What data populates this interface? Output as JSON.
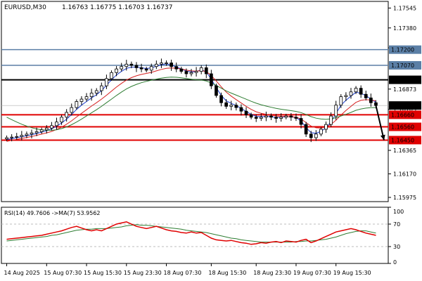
{
  "header": {
    "symbol_tf": "EURUSD,M30",
    "ohlc": "1.16763 1.16775 1.16703 1.16737"
  },
  "chart_data": {
    "type": "candlestick",
    "price_axis": {
      "range": [
        1.1594,
        1.176
      ],
      "ticks": [
        "1.17545",
        "1.17380",
        "1.17215",
        "1.16873",
        "1.16705",
        "1.16365",
        "1.16170",
        "1.15975"
      ]
    },
    "levels": [
      {
        "value": 1.172,
        "label": "1.17200",
        "color": "#5b7fa6",
        "width": 1.5
      },
      {
        "value": 1.1707,
        "label": "1.17070",
        "color": "#5b7fa6",
        "width": 1.5
      },
      {
        "value": 1.1695,
        "label": "1.16950",
        "color": "#000000",
        "width": 2
      },
      {
        "value": 1.1666,
        "label": "1.16660",
        "color": "#e00000",
        "width": 2
      },
      {
        "value": 1.1656,
        "label": "1.16560",
        "color": "#e00000",
        "width": 2
      },
      {
        "value": 1.1645,
        "label": "1.16450",
        "color": "#e00000",
        "width": 2
      }
    ],
    "current_price": {
      "value": 1.16737,
      "label": "1.16737"
    },
    "series": [
      {
        "name": "price",
        "color": "#000000",
        "values": [
          1.1647,
          1.16475,
          1.1648,
          1.1649,
          1.165,
          1.1651,
          1.1652,
          1.16535,
          1.1655,
          1.1657,
          1.166,
          1.1664,
          1.1668,
          1.1672,
          1.1677,
          1.1679,
          1.1681,
          1.1684,
          1.1686,
          1.169,
          1.1696,
          1.1701,
          1.1704,
          1.1706,
          1.1708,
          1.1707,
          1.1705,
          1.1704,
          1.1703,
          1.1706,
          1.1708,
          1.1709,
          1.1709,
          1.1706,
          1.1704,
          1.1702,
          1.17,
          1.1701,
          1.1702,
          1.1705,
          1.17,
          1.169,
          1.1682,
          1.1676,
          1.1673,
          1.1674,
          1.1672,
          1.1669,
          1.1666,
          1.1664,
          1.1663,
          1.1664,
          1.1665,
          1.1664,
          1.1663,
          1.1664,
          1.1665,
          1.1664,
          1.1663,
          1.1658,
          1.165,
          1.1647,
          1.165,
          1.1654,
          1.1658,
          1.1665,
          1.1674,
          1.1681,
          1.1682,
          1.1685,
          1.1688,
          1.1683,
          1.168,
          1.1676,
          1.16737
        ]
      },
      {
        "name": "fast-ma",
        "color": "#1e3fd0",
        "values": [
          1.16455,
          1.16462,
          1.1647,
          1.16478,
          1.16486,
          1.16495,
          1.16505,
          1.16516,
          1.16528,
          1.16544,
          1.16565,
          1.16592,
          1.16624,
          1.16662,
          1.16705,
          1.1674,
          1.1677,
          1.168,
          1.16826,
          1.1686,
          1.16905,
          1.1695,
          1.1699,
          1.1702,
          1.17045,
          1.17055,
          1.17055,
          1.1705,
          1.17043,
          1.1705,
          1.17062,
          1.17075,
          1.17082,
          1.17072,
          1.17057,
          1.1704,
          1.17022,
          1.17016,
          1.17018,
          1.17034,
          1.17015,
          1.16955,
          1.16885,
          1.1682,
          1.16775,
          1.16755,
          1.16737,
          1.16713,
          1.16687,
          1.16664,
          1.16647,
          1.16644,
          1.16647,
          1.16644,
          1.16637,
          1.16639,
          1.16645,
          1.16643,
          1.16637,
          1.16608,
          1.16554,
          1.16512,
          1.16506,
          1.16523,
          1.16552,
          1.16601,
          1.1667,
          1.1674,
          1.1678,
          1.16815,
          1.16847,
          1.16838,
          1.16819,
          1.1679,
          1.16763
        ]
      },
      {
        "name": "mid-ma",
        "color": "#d62020",
        "values": [
          1.1644,
          1.16448,
          1.16456,
          1.16464,
          1.16472,
          1.1648,
          1.1649,
          1.165,
          1.1651,
          1.16522,
          1.16538,
          1.16558,
          1.16582,
          1.1661,
          1.16642,
          1.16672,
          1.16702,
          1.16732,
          1.1676,
          1.1679,
          1.16822,
          1.16856,
          1.1689,
          1.1692,
          1.16948,
          1.16968,
          1.16983,
          1.16995,
          1.17003,
          1.17012,
          1.17024,
          1.17036,
          1.17045,
          1.17048,
          1.17046,
          1.1704,
          1.1703,
          1.17024,
          1.17022,
          1.17026,
          1.17018,
          1.16985,
          1.1694,
          1.16892,
          1.16848,
          1.16815,
          1.16786,
          1.16758,
          1.1673,
          1.16705,
          1.16685,
          1.16672,
          1.16664,
          1.16657,
          1.1665,
          1.16647,
          1.16646,
          1.16644,
          1.1664,
          1.16625,
          1.16596,
          1.16567,
          1.16552,
          1.1655,
          1.16558,
          1.1658,
          1.16615,
          1.16658,
          1.16696,
          1.1673,
          1.16763,
          1.1678,
          1.16785,
          1.16782,
          1.16775
        ]
      },
      {
        "name": "slow-ma",
        "color": "#2e7d32",
        "values": [
          1.1664,
          1.1662,
          1.166,
          1.16582,
          1.16566,
          1.16553,
          1.16543,
          1.16536,
          1.16532,
          1.16532,
          1.16536,
          1.16546,
          1.1656,
          1.16578,
          1.166,
          1.16624,
          1.1665,
          1.16676,
          1.16702,
          1.1673,
          1.1676,
          1.1679,
          1.1682,
          1.16848,
          1.16874,
          1.16895,
          1.16912,
          1.16926,
          1.16937,
          1.16947,
          1.16956,
          1.16964,
          1.1697,
          1.16972,
          1.16971,
          1.16967,
          1.16961,
          1.16955,
          1.1695,
          1.16948,
          1.1694,
          1.16924,
          1.16903,
          1.1688,
          1.16858,
          1.1684,
          1.16823,
          1.16806,
          1.16789,
          1.16772,
          1.16756,
          1.16743,
          1.16732,
          1.16722,
          1.16713,
          1.16706,
          1.167,
          1.16694,
          1.16688,
          1.16678,
          1.16662,
          1.16645,
          1.16632,
          1.16625,
          1.16622,
          1.16626,
          1.16636,
          1.1665,
          1.16664,
          1.1668,
          1.16697,
          1.16708,
          1.16715,
          1.16719,
          1.1672
        ]
      }
    ],
    "rsi": {
      "label": "RSI(14) 49.7606  ->MA(7) 53.9562",
      "range": [
        0,
        100
      ],
      "ticks": [
        "100",
        "70",
        "30",
        "0"
      ],
      "levels": [
        70,
        30
      ],
      "rsi_values": [
        43,
        44,
        45,
        46,
        47,
        48,
        49,
        50,
        52,
        54,
        56,
        58,
        61,
        64,
        66,
        63,
        60,
        58,
        60,
        58,
        62,
        66,
        70,
        72,
        74,
        70,
        66,
        64,
        62,
        64,
        66,
        63,
        60,
        58,
        57,
        55,
        54,
        56,
        54,
        55,
        50,
        45,
        42,
        41,
        40,
        41,
        39,
        37,
        36,
        34,
        35,
        37,
        36,
        38,
        39,
        37,
        40,
        39,
        38,
        41,
        43,
        37,
        40,
        44,
        48,
        52,
        56,
        58,
        60,
        62,
        60,
        57,
        54,
        52,
        50
      ],
      "ma_values": [
        40,
        41,
        42,
        43,
        44,
        45,
        46,
        47,
        48,
        50,
        51,
        53,
        55,
        57,
        59,
        60,
        61,
        61,
        62,
        62,
        62,
        63,
        64,
        65,
        67,
        68,
        69,
        68,
        68,
        67,
        66,
        65,
        64,
        63,
        62,
        61,
        59,
        58,
        57,
        56,
        55,
        53,
        51,
        49,
        47,
        45,
        44,
        42,
        41,
        40,
        39,
        38,
        38,
        38,
        38,
        38,
        38,
        38,
        39,
        39,
        40,
        40,
        41,
        42,
        43,
        45,
        47,
        50,
        53,
        55,
        57,
        58,
        58,
        56,
        54
      ]
    },
    "arrow": {
      "from_index": 74,
      "to_value": 1.1645
    },
    "time_axis": {
      "labels": [
        {
          "index": 0,
          "text": "14 Aug 2025"
        },
        {
          "index": 8,
          "text": "15 Aug 07:30"
        },
        {
          "index": 16,
          "text": "15 Aug 15:30"
        },
        {
          "index": 24,
          "text": "15 Aug 23:30"
        },
        {
          "index": 32,
          "text": "18 Aug 07:30"
        },
        {
          "index": 41,
          "text": "18 Aug 15:30"
        },
        {
          "index": 50,
          "text": "18 Aug 23:30"
        },
        {
          "index": 58,
          "text": "19 Aug 07:30"
        },
        {
          "index": 66,
          "text": "19 Aug 15:30"
        }
      ]
    }
  },
  "colors": {
    "bull": "#ffffff",
    "bear": "#000000",
    "rsi_line": "#e00000",
    "rsi_ma": "#2e7d32",
    "grid": "#bdbdbd"
  }
}
